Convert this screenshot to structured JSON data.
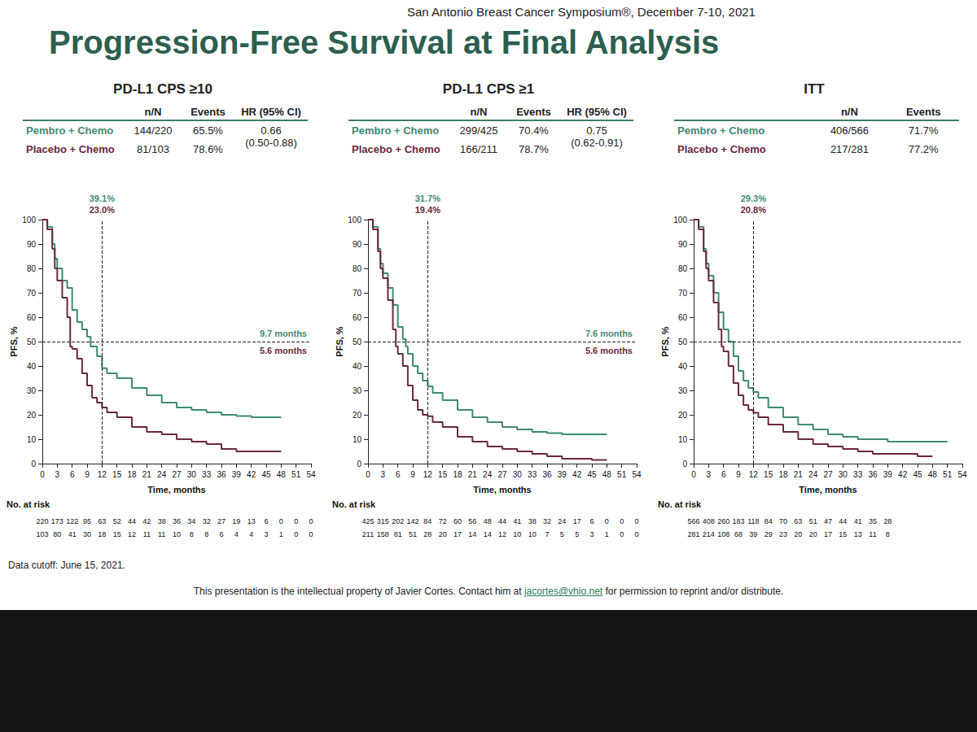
{
  "header": "San Antonio Breast Cancer Symposium®, December 7-10, 2021",
  "title": "Progression-Free Survival at Final Analysis",
  "footnote": "Data cutoff: June 15, 2021.",
  "footer": {
    "before": "This presentation is the intellectual property of Javier Cortes. Contact him at",
    "email": "jacortes@vhio.net",
    "after": "for permission to reprint and/or distribute."
  },
  "chart_data": [
    {
      "type": "step",
      "title": "PD-L1 CPS ≥10",
      "table": {
        "columns": [
          "n/N",
          "Events",
          "HR (95% CI)"
        ],
        "rows": [
          [
            "144/220",
            "65.5%",
            [
              "0.66",
              "(0.50-0.88)"
            ]
          ],
          [
            "81/103",
            "78.6%"
          ]
        ]
      },
      "x_label": "Time, months",
      "y_label": "PFS, %",
      "xlim": [
        0,
        54
      ],
      "xticks": [
        0,
        3,
        6,
        9,
        12,
        15,
        18,
        21,
        24,
        27,
        30,
        33,
        36,
        39,
        42,
        45,
        48,
        51,
        54
      ],
      "ylim": [
        0,
        100
      ],
      "yticks": [
        0,
        10,
        20,
        30,
        40,
        50,
        60,
        70,
        80,
        90,
        100
      ],
      "grid": false,
      "series": [
        {
          "name": "Pembro + Chemo",
          "color": "#3f8a73",
          "line_style": "solid",
          "x": [
            0,
            1,
            2,
            2.5,
            3,
            4,
            5,
            6,
            7,
            8,
            9,
            9.7,
            11,
            12,
            13,
            15,
            18,
            21,
            24,
            27,
            30,
            33,
            36,
            39,
            42,
            48
          ],
          "values": [
            100,
            97,
            90,
            84,
            80,
            75,
            72,
            63,
            58,
            55,
            52,
            48,
            44,
            39.1,
            37,
            35,
            31,
            28,
            25,
            23,
            22,
            21,
            20,
            19.5,
            19,
            19
          ]
        },
        {
          "name": "Placebo + Chemo",
          "color": "#6a2a3c",
          "line_style": "solid",
          "x": [
            0,
            1,
            2,
            2.5,
            3,
            4,
            5,
            5.6,
            6,
            7,
            8,
            9,
            10,
            11,
            12,
            13,
            15,
            18,
            21,
            24,
            27,
            30,
            33,
            36,
            39,
            48
          ],
          "values": [
            100,
            96,
            88,
            80,
            75,
            68,
            60,
            48,
            47,
            43,
            37,
            32,
            27,
            25,
            23,
            21,
            19,
            15,
            13,
            12,
            10,
            9,
            8,
            6,
            5,
            5
          ]
        }
      ],
      "landmark": {
        "x": 12,
        "labels": [
          "39.1%",
          "23.0%"
        ]
      },
      "median": {
        "y": 50,
        "labels": [
          "9.7 months",
          "5.6 months"
        ]
      },
      "at_risk": {
        "label": "No. at risk",
        "x": [
          0,
          3,
          6,
          9,
          12,
          15,
          18,
          21,
          24,
          27,
          30,
          33,
          36,
          39,
          42,
          45,
          48,
          51,
          54
        ],
        "rows": [
          [
            220,
            173,
            122,
            95,
            63,
            52,
            44,
            42,
            38,
            36,
            34,
            32,
            27,
            19,
            13,
            6,
            0,
            0,
            0
          ],
          [
            103,
            80,
            41,
            30,
            18,
            15,
            12,
            11,
            11,
            10,
            8,
            8,
            6,
            4,
            4,
            3,
            1,
            0,
            0
          ]
        ]
      }
    },
    {
      "type": "step",
      "title": "PD-L1 CPS ≥1",
      "table": {
        "columns": [
          "n/N",
          "Events",
          "HR (95% CI)"
        ],
        "rows": [
          [
            "299/425",
            "70.4%",
            [
              "0.75",
              "(0.62-0.91)"
            ]
          ],
          [
            "166/211",
            "78.7%"
          ]
        ]
      },
      "x_label": "Time, months",
      "y_label": "PFS, %",
      "xlim": [
        0,
        54
      ],
      "xticks": [
        0,
        3,
        6,
        9,
        12,
        15,
        18,
        21,
        24,
        27,
        30,
        33,
        36,
        39,
        42,
        45,
        48,
        51,
        54
      ],
      "ylim": [
        0,
        100
      ],
      "yticks": [
        0,
        10,
        20,
        30,
        40,
        50,
        60,
        70,
        80,
        90,
        100
      ],
      "grid": false,
      "series": [
        {
          "name": "Pembro + Chemo",
          "color": "#3f8a73",
          "line_style": "solid",
          "x": [
            0,
            1,
            2,
            2.5,
            3,
            4,
            5,
            6,
            7,
            7.6,
            8,
            9,
            10,
            11,
            12,
            13,
            15,
            18,
            21,
            24,
            27,
            30,
            33,
            36,
            39,
            48
          ],
          "values": [
            100,
            97,
            88,
            82,
            78,
            72,
            65,
            56,
            51,
            48,
            45,
            40,
            37,
            34,
            31.7,
            29,
            26,
            22,
            19,
            17,
            15,
            14,
            13,
            12.5,
            12,
            12
          ]
        },
        {
          "name": "Placebo + Chemo",
          "color": "#6a2a3c",
          "line_style": "solid",
          "x": [
            0,
            1,
            2,
            2.5,
            3,
            4,
            5,
            5.6,
            6,
            7,
            8,
            9,
            10,
            11,
            12,
            13,
            15,
            18,
            21,
            24,
            27,
            30,
            33,
            36,
            39,
            45,
            48
          ],
          "values": [
            100,
            96,
            87,
            80,
            76,
            67,
            55,
            48,
            45,
            40,
            32,
            26,
            22,
            20,
            19.4,
            17,
            15,
            11,
            9,
            7,
            6,
            5,
            4,
            3,
            2,
            1.5,
            1.5
          ]
        }
      ],
      "landmark": {
        "x": 12,
        "labels": [
          "31.7%",
          "19.4%"
        ]
      },
      "median": {
        "y": 50,
        "labels": [
          "7.6 months",
          "5.6 months"
        ]
      },
      "at_risk": {
        "label": "No. at risk",
        "x": [
          0,
          3,
          6,
          9,
          12,
          15,
          18,
          21,
          24,
          27,
          30,
          33,
          36,
          39,
          42,
          45,
          48,
          51,
          54
        ],
        "rows": [
          [
            425,
            315,
            202,
            142,
            84,
            72,
            60,
            56,
            48,
            44,
            41,
            38,
            32,
            24,
            17,
            6,
            0,
            0,
            0
          ],
          [
            211,
            158,
            81,
            51,
            28,
            20,
            17,
            14,
            14,
            12,
            10,
            10,
            7,
            5,
            5,
            3,
            1,
            0,
            0
          ]
        ]
      }
    },
    {
      "type": "step",
      "title": "ITT",
      "table": {
        "columns": [
          "n/N",
          "Events"
        ],
        "rows": [
          [
            "406/566",
            "71.7%"
          ],
          [
            "217/281",
            "77.2%"
          ]
        ]
      },
      "x_label": "Time, months",
      "y_label": "PFS, %",
      "xlim": [
        0,
        54
      ],
      "xticks": [
        0,
        3,
        6,
        9,
        12,
        15,
        18,
        21,
        24,
        27,
        30,
        33,
        36,
        39,
        42,
        45,
        48,
        51,
        54
      ],
      "ylim": [
        0,
        100
      ],
      "yticks": [
        0,
        10,
        20,
        30,
        40,
        50,
        60,
        70,
        80,
        90,
        100
      ],
      "grid": false,
      "series": [
        {
          "name": "Pembro + Chemo",
          "color": "#3f8a73",
          "line_style": "solid",
          "x": [
            0,
            1,
            2,
            2.5,
            3,
            4,
            5,
            6,
            7,
            8,
            9,
            10,
            11,
            12,
            13,
            15,
            18,
            21,
            24,
            27,
            30,
            33,
            36,
            39,
            45,
            51
          ],
          "values": [
            100,
            97,
            88,
            82,
            77,
            70,
            62,
            55,
            50,
            44,
            38,
            34,
            31,
            29.3,
            27,
            23,
            19,
            16,
            14,
            12,
            11,
            10,
            10,
            9,
            9,
            9
          ]
        },
        {
          "name": "Placebo + Chemo",
          "color": "#6a2a3c",
          "line_style": "solid",
          "x": [
            0,
            1,
            2,
            2.5,
            3,
            4,
            5,
            5.6,
            6,
            7,
            8,
            9,
            10,
            11,
            12,
            13,
            15,
            18,
            21,
            24,
            27,
            30,
            33,
            36,
            39,
            45,
            48
          ],
          "values": [
            100,
            96,
            87,
            80,
            75,
            66,
            55,
            48,
            46,
            40,
            33,
            28,
            24,
            22,
            20.8,
            19,
            16,
            13,
            10,
            8,
            7,
            6,
            5,
            4,
            4,
            3,
            3
          ]
        }
      ],
      "landmark": {
        "x": 12,
        "labels": [
          "29.3%",
          "20.8%"
        ]
      },
      "median": {
        "y": 50
      },
      "at_risk": {
        "label": "No. at risk",
        "x": [
          0,
          3,
          6,
          9,
          12,
          15,
          18,
          21,
          24,
          27,
          30,
          33,
          36,
          39
        ],
        "rows": [
          [
            566,
            408,
            260,
            183,
            118,
            84,
            70,
            63,
            51,
            47,
            44,
            41,
            35,
            28
          ],
          [
            281,
            214,
            108,
            68,
            39,
            29,
            23,
            20,
            20,
            17,
            15,
            13,
            11,
            8
          ]
        ]
      }
    }
  ]
}
